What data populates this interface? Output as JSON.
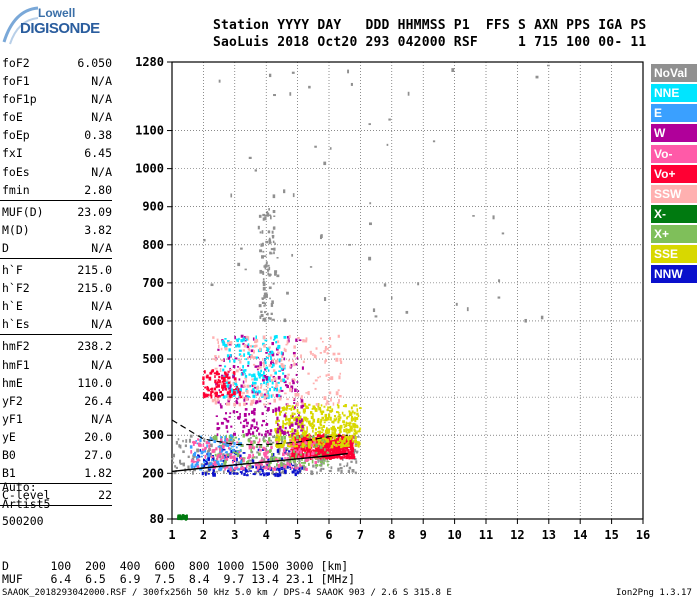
{
  "logo": {
    "sub": "Lowell",
    "main": "DIGISONDE"
  },
  "header": {
    "line1": "Station YYYY DAY   DDD HHMMSS P1  FFS S AXN PPS IGA PS",
    "line2": "SaoLuis 2018 Oct20 293 042000 RSF     1 715 100 00- 11"
  },
  "params_group1": [
    {
      "name": "foF2",
      "value": "6.050"
    },
    {
      "name": "foF1",
      "value": "N/A"
    },
    {
      "name": "foF1p",
      "value": "N/A"
    },
    {
      "name": "foE",
      "value": "N/A"
    },
    {
      "name": "foEp",
      "value": "0.38"
    },
    {
      "name": "fxI",
      "value": "6.45"
    },
    {
      "name": "foEs",
      "value": "N/A"
    },
    {
      "name": "fmin",
      "value": "2.80"
    }
  ],
  "params_group2": [
    {
      "name": "MUF(D)",
      "value": "23.09"
    },
    {
      "name": "M(D)",
      "value": "3.82"
    },
    {
      "name": "D",
      "value": "N/A"
    }
  ],
  "params_group3": [
    {
      "name": "h`F",
      "value": "215.0"
    },
    {
      "name": "h`F2",
      "value": "215.0"
    },
    {
      "name": "h`E",
      "value": "N/A"
    },
    {
      "name": "h`Es",
      "value": "N/A"
    }
  ],
  "params_group4": [
    {
      "name": "hmF2",
      "value": "238.2"
    },
    {
      "name": "hmF1",
      "value": "N/A"
    },
    {
      "name": "hmE",
      "value": "110.0"
    },
    {
      "name": "yF2",
      "value": "26.4"
    },
    {
      "name": "yF1",
      "value": "N/A"
    },
    {
      "name": "yE",
      "value": "20.0"
    },
    {
      "name": "B0",
      "value": "27.0"
    },
    {
      "name": "B1",
      "value": "1.82"
    }
  ],
  "params_group5": [
    {
      "name": "C-level",
      "value": "22"
    }
  ],
  "auto": {
    "line1": "Auto:",
    "line2": "Artist5",
    "line3": "500200"
  },
  "legend": [
    {
      "label": "NoVal",
      "color": "#909090",
      "text": "#ffffff"
    },
    {
      "label": "NNE",
      "color": "#00e5ff",
      "text": "#ffffff"
    },
    {
      "label": "E",
      "color": "#3aa0ff",
      "text": "#ffffff"
    },
    {
      "label": "W",
      "color": "#b0009a",
      "text": "#ffffff"
    },
    {
      "label": "Vo-",
      "color": "#ff5aa8",
      "text": "#ffffff"
    },
    {
      "label": "Vo+",
      "color": "#ff0033",
      "text": "#ffffff"
    },
    {
      "label": "SSW",
      "color": "#ffb0b0",
      "text": "#ffffff"
    },
    {
      "label": "X-",
      "color": "#007a10",
      "text": "#ffffff"
    },
    {
      "label": "X+",
      "color": "#7fbf5a",
      "text": "#ffffff"
    },
    {
      "label": "SSE",
      "color": "#d8d800",
      "text": "#ffffff"
    },
    {
      "label": "NNW",
      "color": "#0a10cc",
      "text": "#ffffff"
    }
  ],
  "footer": {
    "line1": "D      100  200  400  600  800 1000 1500 3000 [km]",
    "line2": "MUF    6.4  6.5  6.9  7.5  8.4  9.7 13.4 23.1 [MHz]",
    "line3": "SAAOK_2018293042000.RSF / 300fx256h 50 kHz 5.0 km / DPS-4 SAAOK 903 / 2.6 S 315.8 E",
    "version": "Ion2Png 1.3.17"
  },
  "chart_data": {
    "type": "scatter",
    "xlim": [
      1,
      16
    ],
    "ylim": [
      80,
      1280
    ],
    "x_ticks": [
      "1",
      "2",
      "3",
      "4",
      "5",
      "6",
      "7",
      "8",
      "9",
      "10",
      "11",
      "12",
      "13",
      "14",
      "15",
      "16"
    ],
    "y_ticks": [
      "80",
      "200",
      "300",
      "400",
      "500",
      "600",
      "700",
      "800",
      "900",
      "1000",
      "1100",
      "1280"
    ],
    "grid": true,
    "trace_lower": [
      [
        1.0,
        205
      ],
      [
        2.0,
        214
      ],
      [
        3.0,
        222
      ],
      [
        4.0,
        230
      ],
      [
        5.0,
        238
      ],
      [
        6.0,
        246
      ],
      [
        6.6,
        252
      ]
    ],
    "trace_upper": [
      [
        1.0,
        340
      ],
      [
        2.0,
        290
      ],
      [
        3.0,
        276
      ],
      [
        4.0,
        275
      ],
      [
        5.0,
        282
      ],
      [
        6.0,
        296
      ],
      [
        6.6,
        300
      ]
    ],
    "clusters": [
      {
        "name": "NoVal",
        "x": [
          1.0,
          7.0
        ],
        "y": [
          200,
          300
        ],
        "color": "#909090",
        "n": 260
      },
      {
        "name": "NNW",
        "x": [
          1.7,
          5.2
        ],
        "y": [
          195,
          265
        ],
        "color": "#0a10cc",
        "n": 140
      },
      {
        "name": "Vo+",
        "x": [
          4.8,
          6.8
        ],
        "y": [
          240,
          300
        ],
        "color": "#ff0033",
        "n": 620
      },
      {
        "name": "SSE",
        "x": [
          4.3,
          7.0
        ],
        "y": [
          270,
          380
        ],
        "color": "#d8d800",
        "n": 420
      },
      {
        "name": "X+",
        "x": [
          2.3,
          6.0
        ],
        "y": [
          220,
          300
        ],
        "color": "#7fbf5a",
        "n": 140
      },
      {
        "name": "W",
        "x": [
          2.4,
          5.2
        ],
        "y": [
          300,
          560
        ],
        "color": "#b0009a",
        "n": 260
      },
      {
        "name": "NNE",
        "x": [
          2.6,
          4.6
        ],
        "y": [
          400,
          560
        ],
        "color": "#00e5ff",
        "n": 150
      },
      {
        "name": "SSW",
        "x": [
          2.3,
          6.4
        ],
        "y": [
          380,
          560
        ],
        "color": "#ffb0b0",
        "n": 220
      },
      {
        "name": "E",
        "x": [
          1.6,
          3.2
        ],
        "y": [
          210,
          300
        ],
        "color": "#3aa0ff",
        "n": 90
      },
      {
        "name": "Vo-",
        "x": [
          1.6,
          5.6
        ],
        "y": [
          210,
          290
        ],
        "color": "#ff5aa8",
        "n": 160
      },
      {
        "name": "X-",
        "x": [
          1.2,
          1.5
        ],
        "y": [
          80,
          90
        ],
        "color": "#007a10",
        "n": 40
      },
      {
        "name": "Vo+",
        "x": [
          2.0,
          3.2
        ],
        "y": [
          400,
          470
        ],
        "color": "#ff0033",
        "n": 90
      },
      {
        "name": "NoVal",
        "x": [
          3.8,
          4.3
        ],
        "y": [
          600,
          900
        ],
        "color": "#909090",
        "n": 90
      },
      {
        "name": "NoVal",
        "x": [
          2.0,
          13.0
        ],
        "y": [
          600,
          1280
        ],
        "color": "#909090",
        "n": 60
      }
    ]
  }
}
